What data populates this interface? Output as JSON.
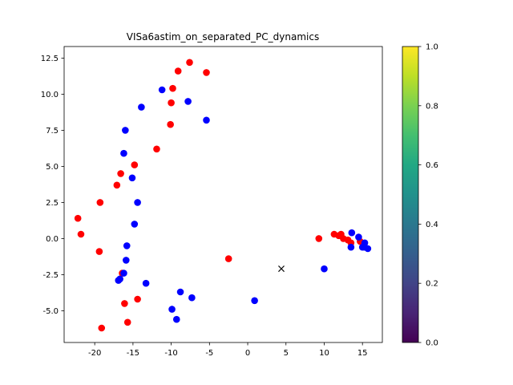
{
  "chart_data": {
    "type": "scatter",
    "title": "VISa6astim_on_separated_PC_dynamics",
    "xlabel": "",
    "ylabel": "",
    "xlim": [
      -24.0,
      17.6
    ],
    "ylim": [
      -7.2,
      13.3
    ],
    "x_ticks": [
      -20,
      -15,
      -10,
      -5,
      0,
      5,
      10,
      15
    ],
    "y_ticks": [
      -5.0,
      -2.5,
      0.0,
      2.5,
      5.0,
      7.5,
      10.0,
      12.5
    ],
    "grid": false,
    "colors": {
      "red": "#ff0000",
      "blue": "#0000ff",
      "marker": "#000000"
    },
    "series": [
      {
        "color": "red",
        "points": [
          [
            -7.6,
            12.2
          ],
          [
            -9.1,
            11.6
          ],
          [
            -5.4,
            11.5
          ],
          [
            -9.8,
            10.4
          ],
          [
            -10.0,
            9.4
          ],
          [
            -10.1,
            7.9
          ],
          [
            -11.9,
            6.2
          ],
          [
            -14.8,
            5.1
          ],
          [
            -16.6,
            4.5
          ],
          [
            -17.1,
            3.7
          ],
          [
            -19.3,
            2.5
          ],
          [
            -22.2,
            1.4
          ],
          [
            -21.8,
            0.3
          ],
          [
            -19.4,
            -0.9
          ],
          [
            -16.4,
            -2.4
          ],
          [
            -16.1,
            -4.5
          ],
          [
            -14.4,
            -4.2
          ],
          [
            -15.7,
            -5.8
          ],
          [
            -19.1,
            -6.2
          ],
          [
            -2.5,
            -1.4
          ],
          [
            9.3,
            0.0
          ],
          [
            11.3,
            0.3
          ],
          [
            11.9,
            0.2
          ],
          [
            12.2,
            0.3
          ],
          [
            12.5,
            0.0
          ],
          [
            13.1,
            -0.1
          ],
          [
            13.5,
            -0.3
          ],
          [
            14.7,
            -0.2
          ]
        ]
      },
      {
        "color": "blue",
        "points": [
          [
            -11.2,
            10.3
          ],
          [
            -7.8,
            9.5
          ],
          [
            -13.9,
            9.1
          ],
          [
            -5.4,
            8.2
          ],
          [
            -16.0,
            7.5
          ],
          [
            -16.2,
            5.9
          ],
          [
            -15.1,
            4.2
          ],
          [
            -14.4,
            2.5
          ],
          [
            -14.8,
            1.0
          ],
          [
            -15.8,
            -0.5
          ],
          [
            -15.9,
            -1.5
          ],
          [
            -16.2,
            -2.4
          ],
          [
            -16.7,
            -2.8
          ],
          [
            -16.9,
            -2.9
          ],
          [
            -13.3,
            -3.1
          ],
          [
            -8.8,
            -3.7
          ],
          [
            -7.3,
            -4.1
          ],
          [
            -9.9,
            -4.9
          ],
          [
            -9.3,
            -5.6
          ],
          [
            0.9,
            -4.3
          ],
          [
            10.0,
            -2.1
          ],
          [
            13.6,
            0.4
          ],
          [
            14.5,
            0.1
          ],
          [
            15.3,
            -0.3
          ],
          [
            13.5,
            -0.6
          ],
          [
            15.0,
            -0.6
          ],
          [
            15.3,
            -0.6
          ],
          [
            15.7,
            -0.7
          ]
        ]
      }
    ],
    "marker_point": {
      "label": "×",
      "x": 4.4,
      "y": -2.1
    },
    "colorbar": {
      "min": 0.0,
      "max": 1.0,
      "ticks": [
        "0.0",
        "0.2",
        "0.4",
        "0.6",
        "0.8",
        "1.0"
      ],
      "tick_values": [
        0.0,
        0.2,
        0.4,
        0.6,
        0.8,
        1.0
      ],
      "colormap": "viridis"
    }
  }
}
